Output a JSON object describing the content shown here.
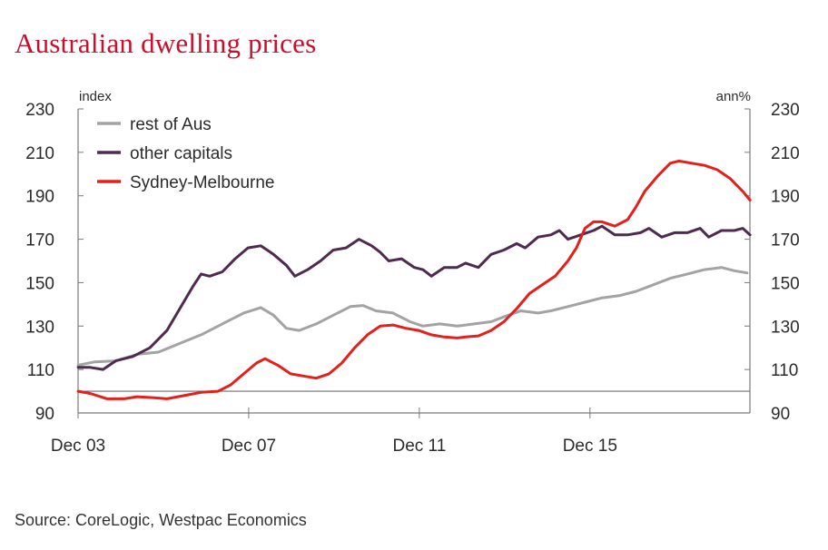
{
  "title": "Australian dwelling prices",
  "source": "Source: CoreLogic, Westpac Economics",
  "chart_data": {
    "type": "line",
    "left_axis_label": "index",
    "right_axis_label": "ann%",
    "ylim": [
      90,
      230
    ],
    "yticks": [
      90,
      110,
      130,
      150,
      170,
      190,
      210,
      230
    ],
    "xlim": [
      2003.917,
      2019.667
    ],
    "xticks": [
      {
        "label": "Dec 03",
        "x": 2003.917
      },
      {
        "label": "Dec 07",
        "x": 2007.917
      },
      {
        "label": "Dec 11",
        "x": 2011.917
      },
      {
        "label": "Dec 15",
        "x": 2015.917
      }
    ],
    "reference_line": 100,
    "legend_position": "top-left",
    "series": [
      {
        "name": "rest of Aus",
        "color": "#a3a3a3",
        "points": [
          [
            2003.92,
            112
          ],
          [
            2004.3,
            113.5
          ],
          [
            2004.8,
            114
          ],
          [
            2005.3,
            117
          ],
          [
            2005.8,
            118
          ],
          [
            2006.3,
            122
          ],
          [
            2006.8,
            126
          ],
          [
            2007.3,
            131
          ],
          [
            2007.8,
            136
          ],
          [
            2008.2,
            138.5
          ],
          [
            2008.5,
            135
          ],
          [
            2008.8,
            129
          ],
          [
            2009.1,
            128
          ],
          [
            2009.5,
            131
          ],
          [
            2009.9,
            135
          ],
          [
            2010.3,
            139
          ],
          [
            2010.6,
            139.5
          ],
          [
            2010.9,
            137
          ],
          [
            2011.3,
            136
          ],
          [
            2011.7,
            132
          ],
          [
            2012.0,
            130
          ],
          [
            2012.4,
            131
          ],
          [
            2012.8,
            130
          ],
          [
            2013.2,
            131
          ],
          [
            2013.6,
            132
          ],
          [
            2014.0,
            135
          ],
          [
            2014.3,
            137
          ],
          [
            2014.7,
            136
          ],
          [
            2015.0,
            137
          ],
          [
            2015.4,
            139
          ],
          [
            2015.8,
            141
          ],
          [
            2016.2,
            143
          ],
          [
            2016.6,
            144
          ],
          [
            2017.0,
            146
          ],
          [
            2017.4,
            149
          ],
          [
            2017.8,
            152
          ],
          [
            2018.2,
            154
          ],
          [
            2018.6,
            156
          ],
          [
            2019.0,
            157
          ],
          [
            2019.3,
            155.5
          ],
          [
            2019.6,
            154.5
          ]
        ]
      },
      {
        "name": "other capitals",
        "color": "#4e2a4f",
        "points": [
          [
            2003.92,
            111
          ],
          [
            2004.2,
            111
          ],
          [
            2004.5,
            110
          ],
          [
            2004.8,
            114
          ],
          [
            2005.2,
            116
          ],
          [
            2005.6,
            120
          ],
          [
            2006.0,
            128
          ],
          [
            2006.3,
            138
          ],
          [
            2006.6,
            148
          ],
          [
            2006.8,
            154
          ],
          [
            2007.0,
            153
          ],
          [
            2007.3,
            155
          ],
          [
            2007.6,
            161
          ],
          [
            2007.9,
            166
          ],
          [
            2008.2,
            167
          ],
          [
            2008.5,
            163
          ],
          [
            2008.8,
            158
          ],
          [
            2009.0,
            153
          ],
          [
            2009.3,
            156
          ],
          [
            2009.6,
            160
          ],
          [
            2009.9,
            165
          ],
          [
            2010.2,
            166
          ],
          [
            2010.5,
            170
          ],
          [
            2010.8,
            167
          ],
          [
            2011.0,
            164
          ],
          [
            2011.2,
            160
          ],
          [
            2011.5,
            161
          ],
          [
            2011.8,
            157
          ],
          [
            2012.0,
            156
          ],
          [
            2012.2,
            153
          ],
          [
            2012.5,
            157
          ],
          [
            2012.8,
            157
          ],
          [
            2013.0,
            159
          ],
          [
            2013.3,
            157
          ],
          [
            2013.6,
            163
          ],
          [
            2013.9,
            165
          ],
          [
            2014.2,
            168
          ],
          [
            2014.4,
            166
          ],
          [
            2014.7,
            171
          ],
          [
            2015.0,
            172
          ],
          [
            2015.2,
            174
          ],
          [
            2015.4,
            170
          ],
          [
            2015.7,
            172
          ],
          [
            2016.0,
            174
          ],
          [
            2016.2,
            176
          ],
          [
            2016.5,
            172
          ],
          [
            2016.8,
            172
          ],
          [
            2017.1,
            173
          ],
          [
            2017.3,
            175
          ],
          [
            2017.6,
            171
          ],
          [
            2017.9,
            173
          ],
          [
            2018.2,
            173
          ],
          [
            2018.5,
            175
          ],
          [
            2018.7,
            171
          ],
          [
            2019.0,
            174
          ],
          [
            2019.3,
            174
          ],
          [
            2019.5,
            175
          ],
          [
            2019.67,
            172
          ]
        ]
      },
      {
        "name": "Sydney-Melbourne",
        "color": "#e3201b",
        "points": [
          [
            2003.92,
            100
          ],
          [
            2004.2,
            99
          ],
          [
            2004.6,
            96.5
          ],
          [
            2005.0,
            96.5
          ],
          [
            2005.3,
            97.5
          ],
          [
            2005.7,
            97
          ],
          [
            2006.0,
            96.5
          ],
          [
            2006.4,
            98
          ],
          [
            2006.8,
            99.5
          ],
          [
            2007.2,
            100
          ],
          [
            2007.5,
            103
          ],
          [
            2007.8,
            108
          ],
          [
            2008.1,
            113
          ],
          [
            2008.3,
            115
          ],
          [
            2008.6,
            112
          ],
          [
            2008.9,
            108
          ],
          [
            2009.2,
            107
          ],
          [
            2009.5,
            106
          ],
          [
            2009.8,
            108
          ],
          [
            2010.1,
            113
          ],
          [
            2010.4,
            120
          ],
          [
            2010.7,
            126
          ],
          [
            2011.0,
            130
          ],
          [
            2011.3,
            130.5
          ],
          [
            2011.6,
            129
          ],
          [
            2011.9,
            128
          ],
          [
            2012.2,
            126
          ],
          [
            2012.5,
            125
          ],
          [
            2012.8,
            124.5
          ],
          [
            2013.0,
            125
          ],
          [
            2013.3,
            125.5
          ],
          [
            2013.6,
            128
          ],
          [
            2013.9,
            132
          ],
          [
            2014.2,
            138
          ],
          [
            2014.5,
            145
          ],
          [
            2014.8,
            149
          ],
          [
            2015.1,
            153
          ],
          [
            2015.4,
            160
          ],
          [
            2015.6,
            166
          ],
          [
            2015.8,
            175
          ],
          [
            2016.0,
            178
          ],
          [
            2016.2,
            178
          ],
          [
            2016.5,
            176
          ],
          [
            2016.8,
            179
          ],
          [
            2017.0,
            185
          ],
          [
            2017.2,
            192
          ],
          [
            2017.5,
            199
          ],
          [
            2017.8,
            205
          ],
          [
            2018.0,
            206
          ],
          [
            2018.3,
            205
          ],
          [
            2018.6,
            204
          ],
          [
            2018.9,
            202
          ],
          [
            2019.2,
            198
          ],
          [
            2019.5,
            192
          ],
          [
            2019.67,
            188
          ]
        ]
      }
    ]
  }
}
